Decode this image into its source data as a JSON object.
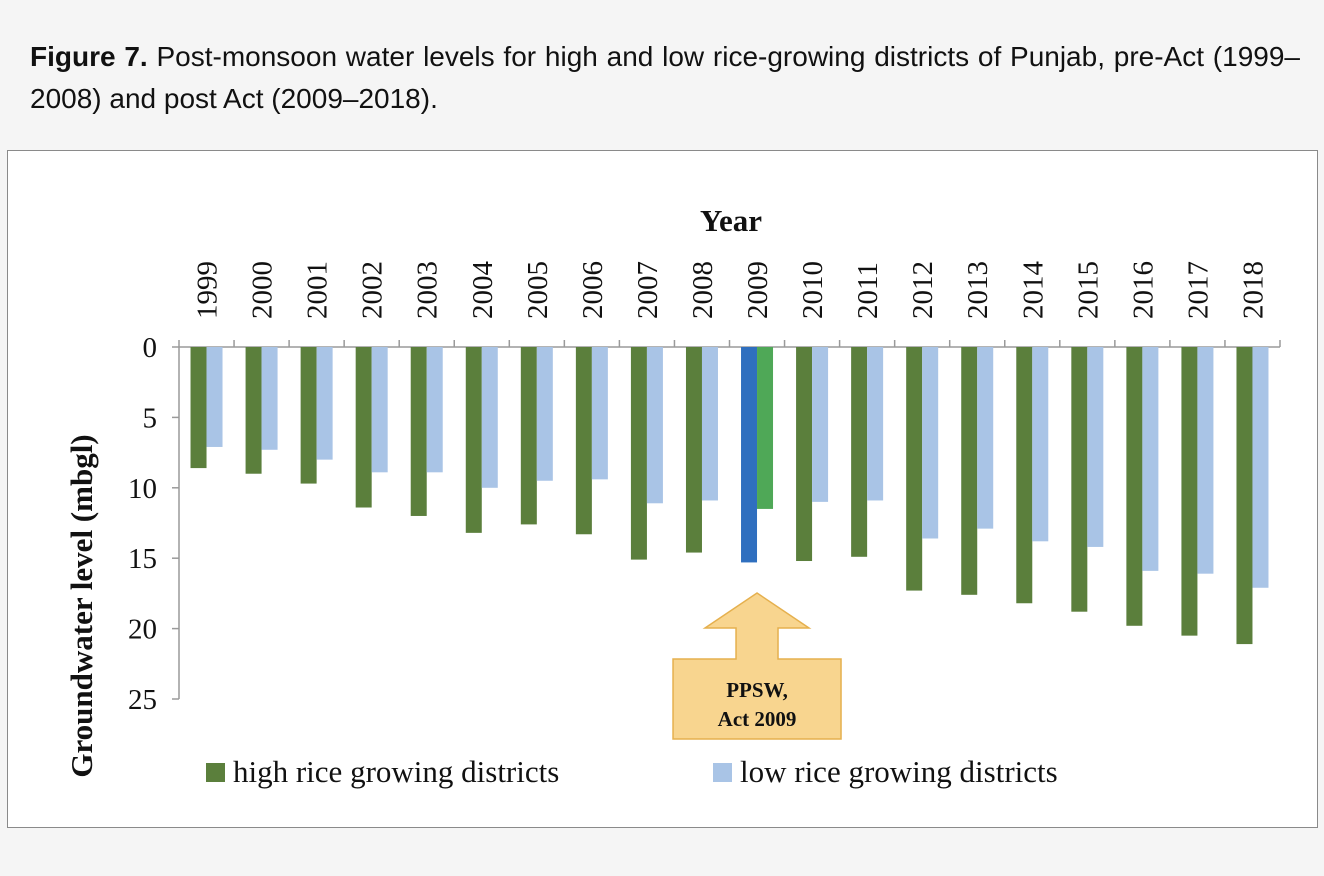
{
  "caption": {
    "label": "Figure 7.",
    "text": " Post-monsoon water levels for high and low rice-growing districts of Punjab, pre-Act (1999–2008) and post Act (2009–2018)."
  },
  "colors": {
    "high": "#5b7f3c",
    "low": "#a9c4e6",
    "high_highlight": "#2f6fbf",
    "low_highlight": "#4fa857",
    "callout_fill": "#f8d58f",
    "callout_stroke": "#e5b04e"
  },
  "annotation": {
    "line1": "PPSW,",
    "line2": "Act 2009",
    "points_to": "2009"
  },
  "chart_data": {
    "type": "bar",
    "xlabel": "Year",
    "ylabel": "Groundwater level (mbgl)",
    "ylim": [
      0,
      25
    ],
    "y_inverted": true,
    "yticks": [
      0,
      5,
      10,
      15,
      20,
      25
    ],
    "x_axis_position": "top",
    "tick_label_rotation": "vertical",
    "legend_position": "bottom",
    "categories": [
      "1999",
      "2000",
      "2001",
      "2002",
      "2003",
      "2004",
      "2005",
      "2006",
      "2007",
      "2008",
      "2009",
      "2010",
      "2011",
      "2012",
      "2013",
      "2014",
      "2015",
      "2016",
      "2017",
      "2018"
    ],
    "series": [
      {
        "name": "high rice growing districts",
        "values": [
          8.6,
          9.0,
          9.7,
          11.4,
          12.0,
          13.2,
          12.6,
          13.3,
          15.1,
          14.6,
          15.3,
          15.2,
          14.9,
          17.3,
          17.6,
          18.2,
          18.8,
          19.8,
          20.5,
          21.1
        ]
      },
      {
        "name": "low rice growing districts",
        "values": [
          7.1,
          7.3,
          8.0,
          8.9,
          8.9,
          10.0,
          9.5,
          9.4,
          11.1,
          10.9,
          11.5,
          11.0,
          10.9,
          13.6,
          12.9,
          13.8,
          14.2,
          15.9,
          16.1,
          17.1
        ]
      }
    ],
    "highlight_category": "2009"
  }
}
